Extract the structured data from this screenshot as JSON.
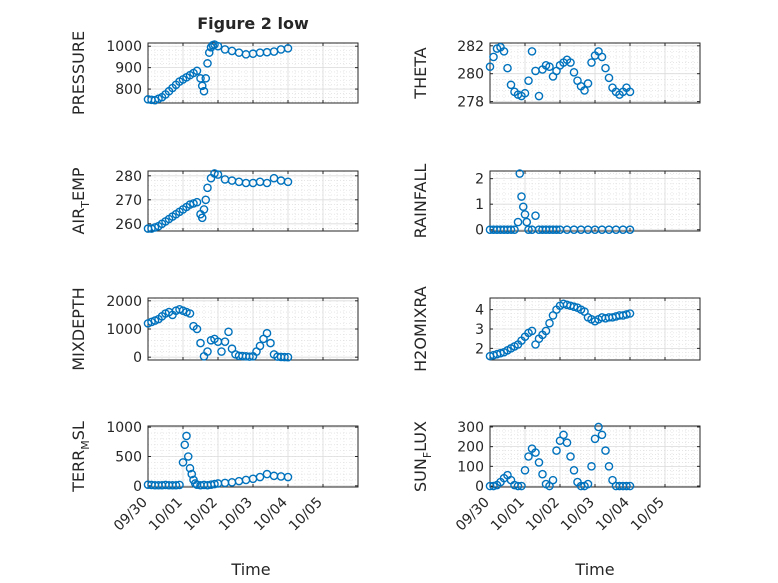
{
  "figure_title": "Figure 2 low",
  "x_axis_label": "Time",
  "x_tick_labels": [
    "09/30",
    "10/01",
    "10/02",
    "10/03",
    "10/04",
    "10/05"
  ],
  "marker_color": "#0072BD",
  "chart_data": [
    {
      "type": "scatter",
      "title": "Figure 2 low",
      "ylabel": "PRESSURE",
      "ylabel_sub": "",
      "xlim": [
        0,
        6
      ],
      "ylim": [
        735,
        1015
      ],
      "yticks": [
        800,
        900,
        1000
      ],
      "ytick_labels": [
        "800",
        "900",
        "1000"
      ],
      "grid": true,
      "marker": "open-circle",
      "x": [
        0.0,
        0.1,
        0.2,
        0.3,
        0.4,
        0.5,
        0.6,
        0.7,
        0.8,
        0.9,
        1.0,
        1.1,
        1.2,
        1.3,
        1.4,
        1.5,
        1.55,
        1.6,
        1.65,
        1.7,
        1.75,
        1.8,
        1.85,
        1.9,
        2.0,
        2.2,
        2.4,
        2.6,
        2.8,
        3.0,
        3.2,
        3.4,
        3.6,
        3.8,
        4.0
      ],
      "y": [
        752,
        750,
        748,
        755,
        762,
        775,
        790,
        805,
        820,
        835,
        845,
        855,
        865,
        875,
        885,
        850,
        815,
        790,
        850,
        920,
        970,
        995,
        1005,
        1008,
        1000,
        985,
        978,
        970,
        962,
        965,
        970,
        972,
        975,
        985,
        990
      ]
    },
    {
      "type": "scatter",
      "title": "",
      "ylabel": "THETA",
      "ylabel_sub": "",
      "xlim": [
        0,
        6
      ],
      "ylim": [
        277.9,
        282.2
      ],
      "yticks": [
        278,
        280,
        282
      ],
      "ytick_labels": [
        "278",
        "280",
        "282"
      ],
      "grid": true,
      "marker": "open-circle",
      "x": [
        0.0,
        0.1,
        0.2,
        0.3,
        0.4,
        0.5,
        0.6,
        0.7,
        0.8,
        0.9,
        1.0,
        1.1,
        1.2,
        1.3,
        1.4,
        1.5,
        1.6,
        1.7,
        1.8,
        1.9,
        2.0,
        2.1,
        2.2,
        2.3,
        2.4,
        2.5,
        2.6,
        2.7,
        2.8,
        2.9,
        3.0,
        3.1,
        3.2,
        3.3,
        3.4,
        3.5,
        3.6,
        3.7,
        3.8,
        3.9,
        4.0
      ],
      "y": [
        280.5,
        281.2,
        281.8,
        281.9,
        281.6,
        280.4,
        279.2,
        278.7,
        278.5,
        278.4,
        278.6,
        279.5,
        281.6,
        280.2,
        278.4,
        280.3,
        280.6,
        280.5,
        279.8,
        280.2,
        280.6,
        280.8,
        281.0,
        280.8,
        280.1,
        279.5,
        279.1,
        278.8,
        279.3,
        280.8,
        281.3,
        281.6,
        281.2,
        280.4,
        279.7,
        279.0,
        278.7,
        278.5,
        278.7,
        279.0,
        278.7
      ]
    },
    {
      "type": "scatter",
      "title": "",
      "ylabel": "AIR",
      "ylabel_sub": "T",
      "ylabel_tail": "EMP",
      "xlim": [
        0,
        6
      ],
      "ylim": [
        257,
        282
      ],
      "yticks": [
        260,
        270,
        280
      ],
      "ytick_labels": [
        "260",
        "270",
        "280"
      ],
      "grid": true,
      "marker": "open-circle",
      "x": [
        0.0,
        0.1,
        0.2,
        0.3,
        0.4,
        0.5,
        0.6,
        0.7,
        0.8,
        0.9,
        1.0,
        1.1,
        1.2,
        1.3,
        1.4,
        1.5,
        1.55,
        1.6,
        1.65,
        1.7,
        1.8,
        1.9,
        2.0,
        2.2,
        2.4,
        2.6,
        2.8,
        3.0,
        3.2,
        3.4,
        3.6,
        3.8,
        4.0
      ],
      "y": [
        258,
        258,
        258.5,
        259,
        260,
        261,
        262,
        263,
        264,
        265,
        266,
        267,
        268,
        268.5,
        269,
        264,
        262.5,
        266,
        270,
        275,
        279,
        281,
        280.5,
        278.5,
        278,
        277.5,
        277,
        277,
        277.5,
        277,
        279,
        278,
        277.5
      ]
    },
    {
      "type": "scatter",
      "title": "",
      "ylabel": "RAINFALL",
      "ylabel_sub": "",
      "xlim": [
        0,
        6
      ],
      "ylim": [
        -0.05,
        2.3
      ],
      "yticks": [
        0,
        1,
        2
      ],
      "ytick_labels": [
        "0",
        "1",
        "2"
      ],
      "grid": true,
      "marker": "open-circle",
      "x": [
        0.0,
        0.1,
        0.2,
        0.3,
        0.4,
        0.5,
        0.6,
        0.7,
        0.8,
        0.85,
        0.9,
        0.95,
        1.0,
        1.05,
        1.1,
        1.2,
        1.3,
        1.4,
        1.5,
        1.6,
        1.7,
        1.8,
        1.9,
        2.0,
        2.2,
        2.4,
        2.6,
        2.8,
        3.0,
        3.2,
        3.4,
        3.6,
        3.8,
        4.0
      ],
      "y": [
        0,
        0,
        0,
        0,
        0,
        0,
        0,
        0,
        0.3,
        2.2,
        1.3,
        0.9,
        0.6,
        0.3,
        0,
        0,
        0.55,
        0,
        0,
        0,
        0,
        0,
        0,
        0,
        0,
        0,
        0,
        0,
        0,
        0,
        0,
        0,
        0,
        0
      ]
    },
    {
      "type": "scatter",
      "title": "",
      "ylabel": "MIXDEPTH",
      "ylabel_sub": "",
      "xlim": [
        0,
        6
      ],
      "ylim": [
        -100,
        2100
      ],
      "yticks": [
        0,
        1000,
        2000
      ],
      "ytick_labels": [
        "0",
        "1000",
        "2000"
      ],
      "grid": true,
      "marker": "open-circle",
      "x": [
        0.0,
        0.1,
        0.2,
        0.3,
        0.4,
        0.5,
        0.6,
        0.7,
        0.8,
        0.9,
        1.0,
        1.1,
        1.2,
        1.3,
        1.4,
        1.5,
        1.6,
        1.7,
        1.8,
        1.9,
        2.0,
        2.1,
        2.2,
        2.3,
        2.4,
        2.5,
        2.6,
        2.7,
        2.8,
        2.9,
        3.0,
        3.1,
        3.2,
        3.3,
        3.4,
        3.5,
        3.6,
        3.7,
        3.8,
        3.9,
        4.0
      ],
      "y": [
        1200,
        1250,
        1300,
        1350,
        1450,
        1550,
        1600,
        1500,
        1650,
        1700,
        1650,
        1600,
        1550,
        1100,
        1000,
        500,
        30,
        200,
        600,
        650,
        550,
        200,
        550,
        900,
        300,
        100,
        50,
        40,
        30,
        20,
        30,
        200,
        400,
        650,
        850,
        500,
        100,
        20,
        10,
        5,
        0
      ]
    },
    {
      "type": "scatter",
      "title": "",
      "ylabel": "H2OMIXRA",
      "ylabel_sub": "",
      "xlim": [
        0,
        6
      ],
      "ylim": [
        1.4,
        4.6
      ],
      "yticks": [
        2,
        3,
        4
      ],
      "ytick_labels": [
        "2",
        "3",
        "4"
      ],
      "grid": true,
      "marker": "open-circle",
      "x": [
        0.0,
        0.1,
        0.2,
        0.3,
        0.4,
        0.5,
        0.6,
        0.7,
        0.8,
        0.9,
        1.0,
        1.1,
        1.2,
        1.3,
        1.4,
        1.5,
        1.6,
        1.7,
        1.8,
        1.9,
        2.0,
        2.1,
        2.2,
        2.3,
        2.4,
        2.5,
        2.6,
        2.7,
        2.8,
        2.9,
        3.0,
        3.1,
        3.2,
        3.3,
        3.4,
        3.5,
        3.6,
        3.7,
        3.8,
        3.9,
        4.0
      ],
      "y": [
        1.6,
        1.65,
        1.7,
        1.75,
        1.8,
        1.9,
        2.0,
        2.1,
        2.2,
        2.4,
        2.6,
        2.8,
        2.9,
        2.2,
        2.5,
        2.7,
        2.9,
        3.3,
        3.7,
        4.0,
        4.2,
        4.3,
        4.25,
        4.2,
        4.15,
        4.1,
        4.0,
        3.9,
        3.6,
        3.5,
        3.4,
        3.5,
        3.6,
        3.55,
        3.6,
        3.6,
        3.65,
        3.7,
        3.7,
        3.75,
        3.8
      ]
    },
    {
      "type": "scatter",
      "title": "",
      "ylabel": "TERR",
      "ylabel_sub": "M",
      "ylabel_tail": "SL",
      "xlim": [
        0,
        6
      ],
      "ylim": [
        -20,
        1020
      ],
      "yticks": [
        0,
        500,
        1000
      ],
      "ytick_labels": [
        "0",
        "500",
        "1000"
      ],
      "grid": true,
      "marker": "open-circle",
      "x": [
        0.0,
        0.1,
        0.2,
        0.3,
        0.4,
        0.5,
        0.6,
        0.7,
        0.8,
        0.9,
        1.0,
        1.05,
        1.1,
        1.15,
        1.2,
        1.25,
        1.3,
        1.35,
        1.4,
        1.5,
        1.6,
        1.7,
        1.8,
        1.9,
        2.0,
        2.2,
        2.4,
        2.6,
        2.8,
        3.0,
        3.2,
        3.4,
        3.6,
        3.8,
        4.0
      ],
      "y": [
        20,
        15,
        10,
        10,
        10,
        15,
        10,
        10,
        10,
        15,
        400,
        700,
        850,
        500,
        300,
        200,
        100,
        40,
        20,
        10,
        15,
        10,
        20,
        30,
        40,
        50,
        60,
        80,
        100,
        120,
        150,
        200,
        170,
        160,
        150
      ]
    },
    {
      "type": "scatter",
      "title": "",
      "ylabel": "SUN",
      "ylabel_sub": "F",
      "ylabel_tail": "LUX",
      "xlim": [
        0,
        6
      ],
      "ylim": [
        -5,
        305
      ],
      "yticks": [
        0,
        100,
        200,
        300
      ],
      "ytick_labels": [
        "0",
        "100",
        "200",
        "300"
      ],
      "grid": true,
      "marker": "open-circle",
      "x": [
        0.0,
        0.1,
        0.2,
        0.3,
        0.4,
        0.5,
        0.6,
        0.7,
        0.8,
        0.9,
        1.0,
        1.1,
        1.2,
        1.3,
        1.4,
        1.5,
        1.6,
        1.7,
        1.8,
        1.9,
        2.0,
        2.1,
        2.2,
        2.3,
        2.4,
        2.5,
        2.6,
        2.7,
        2.8,
        2.9,
        3.0,
        3.1,
        3.2,
        3.3,
        3.4,
        3.5,
        3.6,
        3.7,
        3.8,
        3.9,
        4.0
      ],
      "y": [
        0,
        0,
        5,
        20,
        40,
        55,
        30,
        5,
        0,
        0,
        80,
        150,
        190,
        170,
        120,
        60,
        10,
        0,
        30,
        180,
        230,
        260,
        220,
        150,
        80,
        20,
        0,
        0,
        10,
        100,
        240,
        300,
        260,
        180,
        100,
        30,
        0,
        0,
        0,
        0,
        0
      ]
    }
  ]
}
